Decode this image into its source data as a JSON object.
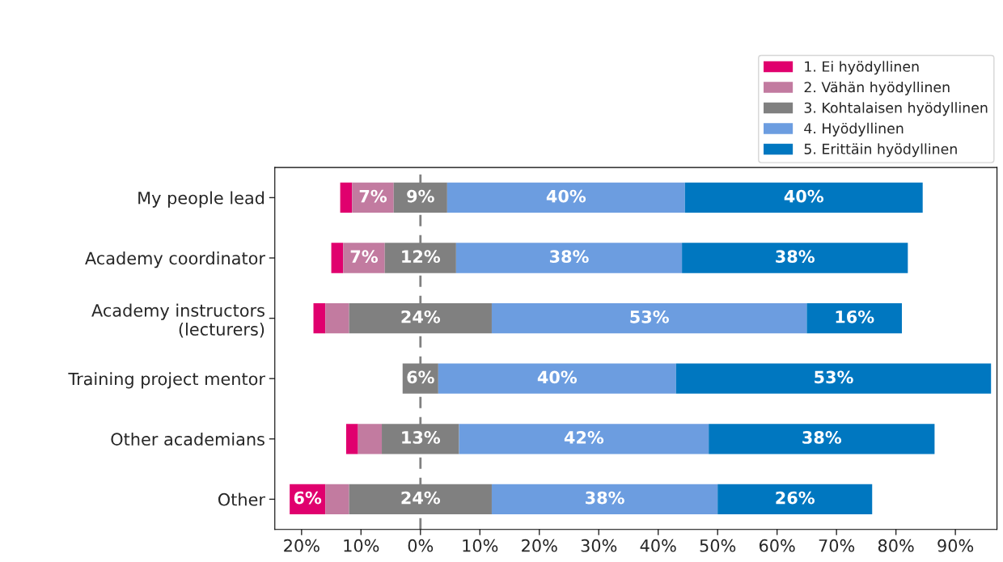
{
  "chart_data": {
    "type": "bar",
    "orientation": "horizontal",
    "categories": [
      "My people lead",
      "Academy coordinator",
      "Academy instructors\n(lecturers)",
      "Training project mentor",
      "Other academians",
      "Other"
    ],
    "series": [
      {
        "name": "1. Ei hyödyllinen",
        "color": "#e0006e",
        "base": [
          -13.5,
          -15,
          -18,
          null,
          -12.5,
          -22
        ],
        "values": [
          2,
          2,
          2,
          null,
          2,
          6
        ],
        "value_labels": [
          null,
          null,
          null,
          null,
          null,
          "6%"
        ]
      },
      {
        "name": "2. Vähän hyödyllinen",
        "color": "#c27ba0",
        "base": [
          -11.5,
          -13,
          -16,
          null,
          -10.5,
          -16
        ],
        "values": [
          7,
          7,
          4,
          null,
          4,
          4
        ],
        "value_labels": [
          "7%",
          "7%",
          null,
          null,
          null,
          null
        ]
      },
      {
        "name": "3. Kohtalaisen hyödyllinen",
        "color": "#808080",
        "base": [
          -4.5,
          -6,
          -12,
          -3,
          -6.5,
          -12
        ],
        "values": [
          9,
          12,
          24,
          6,
          13,
          24
        ],
        "value_labels": [
          "9%",
          "12%",
          "24%",
          "6%",
          "13%",
          "24%"
        ]
      },
      {
        "name": "4. Hyödyllinen",
        "color": "#6c9de0",
        "base": [
          4.5,
          6,
          12,
          3,
          6.5,
          12
        ],
        "values": [
          40,
          38,
          53,
          40,
          42,
          38
        ],
        "value_labels": [
          "40%",
          "38%",
          "53%",
          "40%",
          "42%",
          "38%"
        ]
      },
      {
        "name": "5. Erittäin hyödyllinen",
        "color": "#0077c0",
        "base": [
          44.5,
          44,
          65,
          43,
          48.5,
          50
        ],
        "values": [
          40,
          38,
          16,
          53,
          38,
          26
        ],
        "value_labels": [
          "40%",
          "38%",
          "16%",
          "53%",
          "38%",
          "26%"
        ]
      }
    ],
    "xlim": [
      -24.5,
      97
    ],
    "xticks": [
      {
        "value": -20,
        "label": "20%"
      },
      {
        "value": -10,
        "label": "10%"
      },
      {
        "value": 0,
        "label": "0%"
      },
      {
        "value": 10,
        "label": "10%"
      },
      {
        "value": 20,
        "label": "20%"
      },
      {
        "value": 30,
        "label": "30%"
      },
      {
        "value": 40,
        "label": "40%"
      },
      {
        "value": 50,
        "label": "50%"
      },
      {
        "value": 60,
        "label": "60%"
      },
      {
        "value": 70,
        "label": "70%"
      },
      {
        "value": 80,
        "label": "80%"
      },
      {
        "value": 90,
        "label": "90%"
      }
    ],
    "ref_lines": [
      {
        "axis": "x",
        "value": 0,
        "color": "#808080",
        "line_style": "dashed"
      }
    ],
    "legend": "top right"
  }
}
